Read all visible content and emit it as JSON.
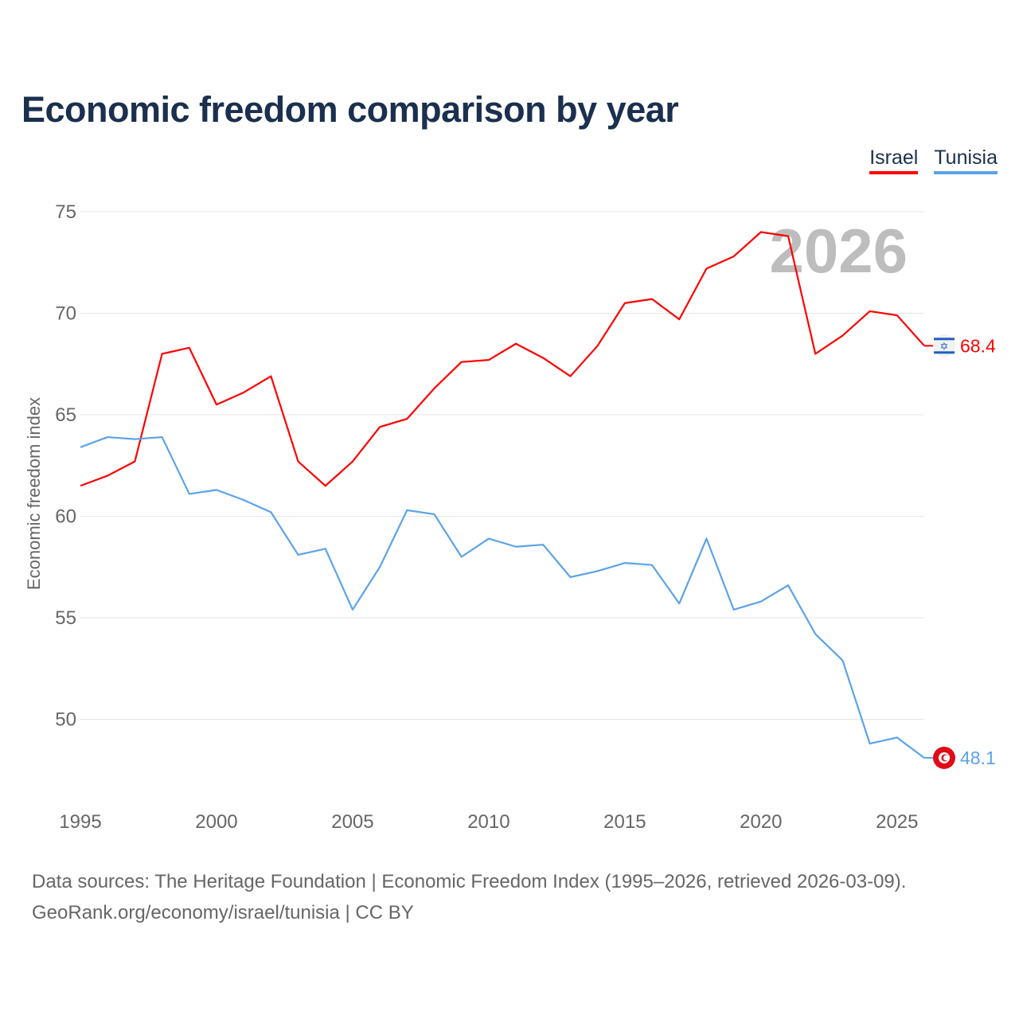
{
  "title": "Economic freedom comparison by year",
  "footer": {
    "line1": "Data sources: The Heritage Foundation | Economic Freedom Index (1995–2026, retrieved 2026-03-09).",
    "line2": "GeoRank.org/economy/israel/tunisia | CC BY"
  },
  "chart_data": {
    "type": "line",
    "title": "Economic freedom comparison by year",
    "xlabel": "",
    "ylabel": "Economic freedom index",
    "watermark_year": "2026",
    "xlim": [
      1995,
      2026
    ],
    "ylim": [
      46,
      76
    ],
    "xticks": [
      1995,
      2000,
      2005,
      2010,
      2015,
      2020,
      2025
    ],
    "yticks": [
      50,
      55,
      60,
      65,
      70,
      75
    ],
    "grid": true,
    "legend_position": "top-right",
    "x": [
      1995,
      1996,
      1997,
      1998,
      1999,
      2000,
      2001,
      2002,
      2003,
      2004,
      2005,
      2006,
      2007,
      2008,
      2009,
      2010,
      2011,
      2012,
      2013,
      2014,
      2015,
      2016,
      2017,
      2018,
      2019,
      2020,
      2021,
      2022,
      2023,
      2024,
      2025,
      2026
    ],
    "series": [
      {
        "name": "Israel",
        "color": "#ff0000",
        "flag": "israel-flag",
        "end_label": "68.4",
        "values": [
          61.5,
          62.0,
          62.7,
          68.0,
          68.3,
          65.5,
          66.1,
          66.9,
          62.7,
          61.5,
          62.7,
          64.4,
          64.8,
          66.3,
          67.6,
          67.7,
          68.5,
          67.8,
          66.9,
          68.4,
          70.5,
          70.7,
          69.7,
          72.2,
          72.8,
          74.0,
          73.8,
          68.0,
          68.9,
          70.1,
          69.9,
          68.4
        ]
      },
      {
        "name": "Tunisia",
        "color": "#5ca3e8",
        "flag": "tunisia-flag",
        "end_label": "48.1",
        "values": [
          63.4,
          63.9,
          63.8,
          63.9,
          61.1,
          61.3,
          60.8,
          60.2,
          58.1,
          58.4,
          55.4,
          57.5,
          60.3,
          60.1,
          58.0,
          58.9,
          58.5,
          58.6,
          57.0,
          57.3,
          57.7,
          57.6,
          55.7,
          58.9,
          55.4,
          55.8,
          56.6,
          54.2,
          52.9,
          48.8,
          49.1,
          48.1
        ]
      }
    ]
  }
}
